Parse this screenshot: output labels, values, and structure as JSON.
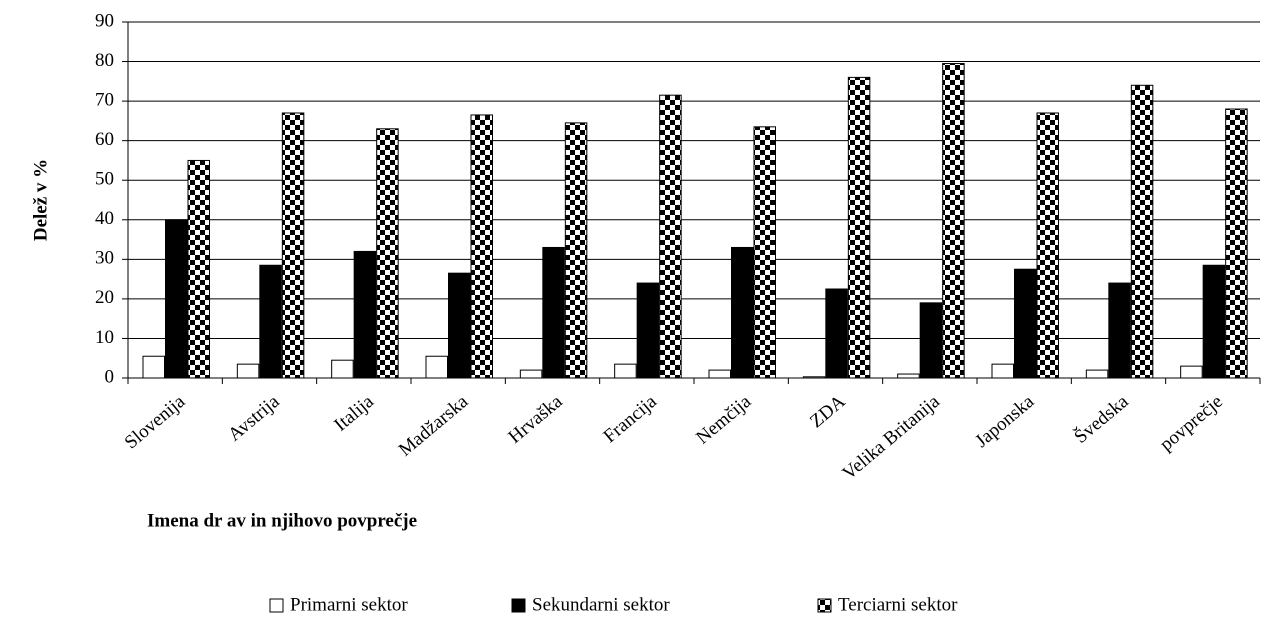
{
  "chart_data": {
    "type": "bar",
    "categories": [
      "Slovenija",
      "Avstrija",
      "Italija",
      "Madžarska",
      "Hrvaška",
      "Francija",
      "Nemčija",
      "ZDA",
      "Velika Britanija",
      "Japonska",
      "Švedska",
      "povprečje"
    ],
    "series": [
      {
        "name": "Primarni sektor",
        "color": "#ffffff",
        "values": [
          5.5,
          3.5,
          4.5,
          5.5,
          2,
          3.5,
          2,
          0.3,
          1,
          3.5,
          2,
          3
        ]
      },
      {
        "name": "Sekundarni sektor",
        "color": "#000000",
        "values": [
          40,
          28.5,
          32,
          26.5,
          33,
          24,
          33,
          22.5,
          19,
          27.5,
          24,
          28.5
        ]
      },
      {
        "name": "Terciarni sektor",
        "color": "#000000",
        "pattern": "checkered",
        "values": [
          55,
          67,
          63,
          66.5,
          64.5,
          71.5,
          63.5,
          76,
          79.5,
          67,
          74,
          68
        ]
      }
    ],
    "xlabel": "Imena dr av in njihovo povprečje",
    "ylabel": "Delež v %",
    "ylim": [
      0,
      90
    ],
    "yticks": [
      0,
      10,
      20,
      30,
      40,
      50,
      60,
      70,
      80,
      90
    ],
    "grid": true,
    "legend": "bottom"
  }
}
